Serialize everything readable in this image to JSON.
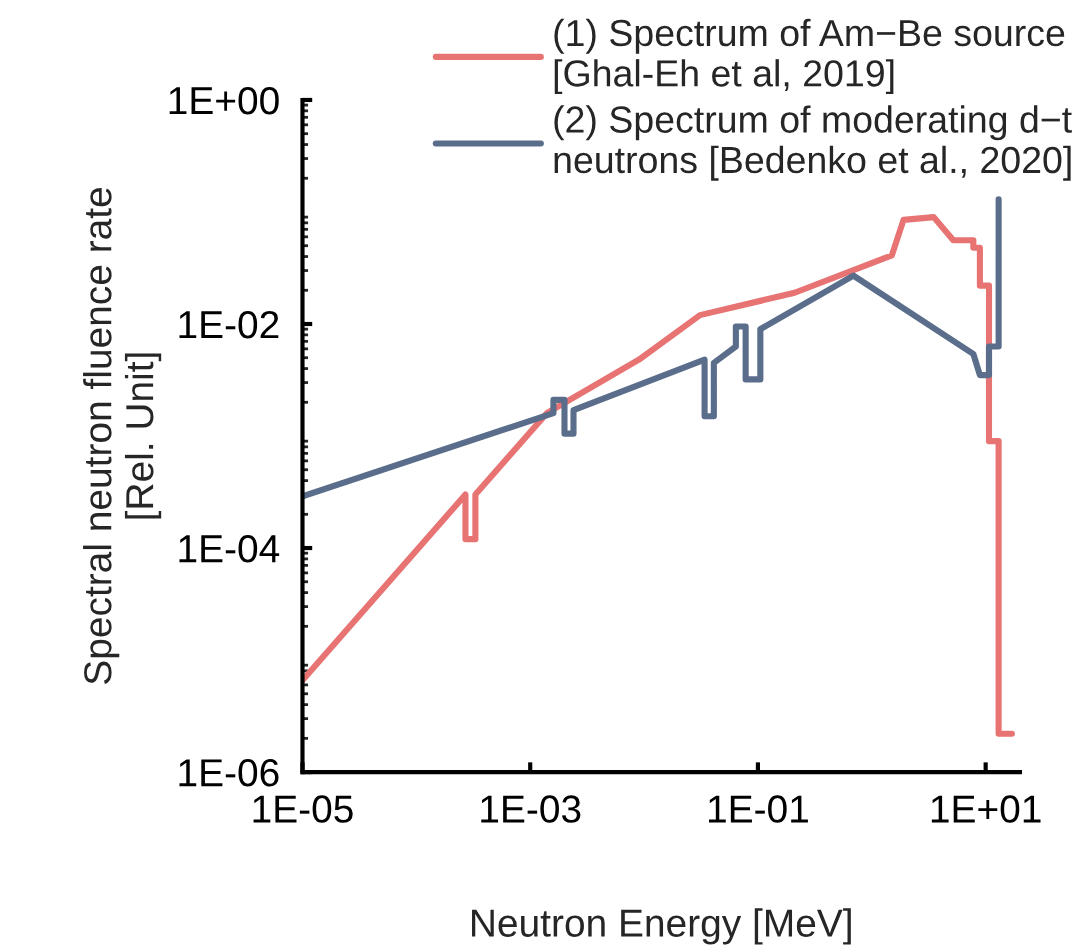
{
  "chart_data": {
    "type": "line",
    "xlabel": "Neutron Energy [MeV]",
    "ylabel": "Spectral neutron fluence rate\n[Rel. Unit]",
    "log": "xy",
    "xlim": [
      1e-05,
      20
    ],
    "ylim": [
      1e-06,
      1
    ],
    "xticks": [
      {
        "value": 1e-05,
        "label": "1E-05"
      },
      {
        "value": 0.001,
        "label": "1E-03"
      },
      {
        "value": 0.1,
        "label": "1E-01"
      },
      {
        "value": 10,
        "label": "1E+01"
      }
    ],
    "yticks": [
      {
        "value": 1e-06,
        "label": "1E-06"
      },
      {
        "value": 0.0001,
        "label": "1E-04"
      },
      {
        "value": 0.01,
        "label": "1E-02"
      },
      {
        "value": 1,
        "label": "1E+00"
      }
    ],
    "grid": false,
    "legend": "top right",
    "series": [
      {
        "name": "(1) Spectrum of Am−Be source\n[Ghal-Eh et al, 2019]",
        "color": "#e87373",
        "x": [
          1e-05,
          0.00027,
          0.00027,
          0.00033,
          0.00033,
          0.0014,
          0.009,
          0.031,
          0.21,
          1.5,
          1.9,
          3.5,
          5.2,
          7.8,
          7.8,
          8.9,
          8.9,
          10.7,
          10.7,
          13,
          13,
          17
        ],
        "values": [
          6.6e-06,
          0.0003,
          0.00012,
          0.00012,
          0.0003,
          0.0016,
          0.0048,
          0.012,
          0.019,
          0.041,
          0.085,
          0.09,
          0.056,
          0.056,
          0.048,
          0.048,
          0.022,
          0.022,
          0.0009,
          0.0009,
          2.2e-06,
          2.2e-06
        ]
      },
      {
        "name": "(2) Spectrum of moderating d−t\nneutrons [Bedenko et al., 2020]",
        "color": "#5a6e8c",
        "x": [
          1e-05,
          0.0016,
          0.0016,
          0.002,
          0.002,
          0.0024,
          0.0024,
          0.034,
          0.034,
          0.041,
          0.041,
          0.064,
          0.064,
          0.078,
          0.078,
          0.105,
          0.105,
          0.69,
          7.8,
          8.9,
          10.7,
          10.7,
          13,
          13
        ],
        "values": [
          0.00029,
          0.0016,
          0.0021,
          0.0021,
          0.00105,
          0.00105,
          0.0017,
          0.0048,
          0.0015,
          0.0015,
          0.0045,
          0.0063,
          0.0095,
          0.0095,
          0.0032,
          0.0032,
          0.009,
          0.027,
          0.0054,
          0.0035,
          0.0035,
          0.0063,
          0.0063,
          0.13
        ]
      }
    ]
  }
}
